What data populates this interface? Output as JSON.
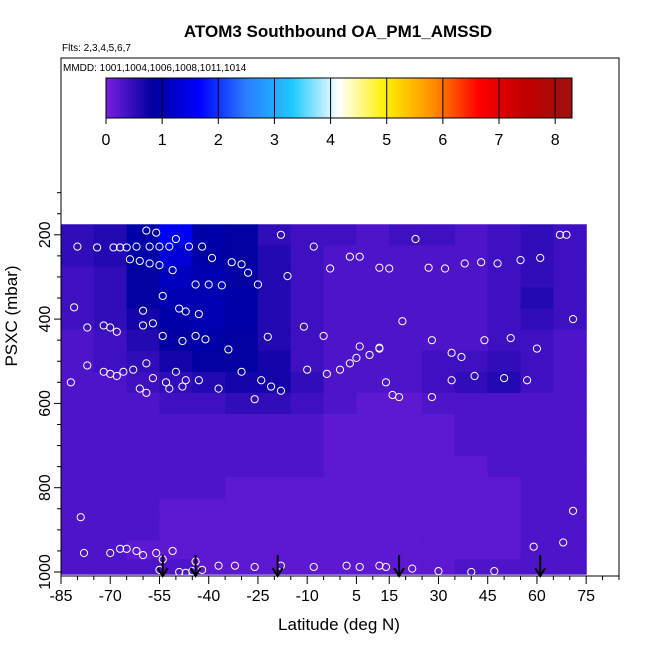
{
  "chart_data": {
    "type": "heatmap",
    "title": "ATOM3 Southbound OA_PM1_AMSSD",
    "subtitle_flights": "Flts: 2,3,4,5,6,7",
    "subtitle_dates": "MMDD: 1001,1004,1006,1008,1011,1014",
    "xlabel": "Latitude (deg N)",
    "ylabel": "PSXC (mbar)",
    "xlim": [
      -85,
      85
    ],
    "ylim": [
      1000,
      100
    ],
    "y_inverted": true,
    "x_ticks": [
      -85,
      -70,
      -55,
      -40,
      -25,
      -10,
      5,
      15,
      30,
      45,
      60,
      75
    ],
    "y_ticks": [
      200,
      400,
      600,
      800,
      1000
    ],
    "colorbar": {
      "range": [
        0,
        8.3
      ],
      "ticks": [
        0,
        1,
        2,
        3,
        4,
        5,
        6,
        7,
        8
      ],
      "stops": [
        "#7a1fe0",
        "#0000a0",
        "#0000ff",
        "#2a7dff",
        "#1ec8ff",
        "#ffffff",
        "#fff000",
        "#ff9000",
        "#ff0000",
        "#c00000",
        "#a01010"
      ]
    },
    "pressure_levels": [
      200,
      250,
      300,
      350,
      400,
      450,
      500,
      550,
      600,
      650,
      700,
      750,
      800,
      850,
      900,
      950,
      990
    ],
    "latitude_bins": [
      -80,
      -70,
      -60,
      -50,
      -40,
      -30,
      -20,
      -10,
      0,
      10,
      20,
      30,
      40,
      50,
      60,
      70
    ],
    "values": [
      [
        0.5,
        0.6,
        0.9,
        1.6,
        0.9,
        0.8,
        0.5,
        0.4,
        0.4,
        0.3,
        0.4,
        0.4,
        0.3,
        0.4,
        0.5,
        0.4
      ],
      [
        0.5,
        0.6,
        0.9,
        1.3,
        0.9,
        0.8,
        0.6,
        0.4,
        0.3,
        0.3,
        0.3,
        0.3,
        0.3,
        0.4,
        0.5,
        0.4
      ],
      [
        0.4,
        0.5,
        0.8,
        1.1,
        1.0,
        0.8,
        0.6,
        0.4,
        0.3,
        0.3,
        0.3,
        0.3,
        0.3,
        0.4,
        0.5,
        0.4
      ],
      [
        0.4,
        0.5,
        0.8,
        1.0,
        1.0,
        0.9,
        0.6,
        0.4,
        0.3,
        0.3,
        0.3,
        0.3,
        0.3,
        0.4,
        0.6,
        0.4
      ],
      [
        0.4,
        0.5,
        0.7,
        0.9,
        1.0,
        0.9,
        0.6,
        0.4,
        0.3,
        0.3,
        0.3,
        0.3,
        0.3,
        0.4,
        0.5,
        0.4
      ],
      [
        0.3,
        0.4,
        0.6,
        0.8,
        0.9,
        0.8,
        0.6,
        0.4,
        0.3,
        0.3,
        0.3,
        0.3,
        0.3,
        0.4,
        0.4,
        0.3
      ],
      [
        0.3,
        0.4,
        0.5,
        0.7,
        0.8,
        0.8,
        0.7,
        0.4,
        0.3,
        0.3,
        0.3,
        0.4,
        0.4,
        0.5,
        0.4,
        0.3
      ],
      [
        0.3,
        0.3,
        0.4,
        0.5,
        0.6,
        0.7,
        0.7,
        0.5,
        0.3,
        0.3,
        0.3,
        0.4,
        0.5,
        0.6,
        0.4,
        0.3
      ],
      [
        0.3,
        0.3,
        0.3,
        0.4,
        0.4,
        0.5,
        0.5,
        0.4,
        0.3,
        0.2,
        0.2,
        0.3,
        0.3,
        0.3,
        0.3,
        0.3
      ],
      [
        0.3,
        0.3,
        0.3,
        0.3,
        0.3,
        0.3,
        0.3,
        0.3,
        0.2,
        0.2,
        0.2,
        0.2,
        0.3,
        0.3,
        0.3,
        0.3
      ],
      [
        0.3,
        0.3,
        0.3,
        0.3,
        0.3,
        0.3,
        0.3,
        0.3,
        0.2,
        0.2,
        0.2,
        0.2,
        0.3,
        0.3,
        0.3,
        0.3
      ],
      [
        0.3,
        0.3,
        0.3,
        0.3,
        0.3,
        0.3,
        0.3,
        0.3,
        0.2,
        0.2,
        0.2,
        0.2,
        0.2,
        0.3,
        0.3,
        0.3
      ],
      [
        0.3,
        0.3,
        0.3,
        0.3,
        0.3,
        0.2,
        0.2,
        0.2,
        0.2,
        0.2,
        0.2,
        0.2,
        0.2,
        0.2,
        0.3,
        0.3
      ],
      [
        0.3,
        0.3,
        0.3,
        0.2,
        0.2,
        0.2,
        0.2,
        0.2,
        0.2,
        0.2,
        0.2,
        0.2,
        0.2,
        0.2,
        0.3,
        0.3
      ],
      [
        0.3,
        0.3,
        0.3,
        0.2,
        0.2,
        0.2,
        0.2,
        0.2,
        0.2,
        0.2,
        0.2,
        0.2,
        0.2,
        0.2,
        0.3,
        0.3
      ],
      [
        0.3,
        0.3,
        0.2,
        0.2,
        0.2,
        0.2,
        0.2,
        0.2,
        0.2,
        0.2,
        0.2,
        0.2,
        0.2,
        0.2,
        0.3,
        0.3
      ],
      [
        0.3,
        0.3,
        0.3,
        0.3,
        0.2,
        0.2,
        0.2,
        0.2,
        0.2,
        0.2,
        0.2,
        0.2,
        0.3,
        0.3,
        0.3,
        0.3
      ]
    ],
    "sample_points": [
      [
        -80,
        228
      ],
      [
        -74,
        230
      ],
      [
        -69,
        230
      ],
      [
        -67,
        230
      ],
      [
        -65,
        230
      ],
      [
        -62,
        228
      ],
      [
        -58,
        228
      ],
      [
        -55,
        228
      ],
      [
        -56,
        195
      ],
      [
        -59,
        190
      ],
      [
        -52,
        228
      ],
      [
        -50,
        210
      ],
      [
        -46,
        228
      ],
      [
        -42,
        228
      ],
      [
        -39,
        255
      ],
      [
        -33,
        265
      ],
      [
        -30,
        270
      ],
      [
        -28,
        290
      ],
      [
        -25,
        318
      ],
      [
        -18,
        200
      ],
      [
        -16,
        298
      ],
      [
        -8,
        228
      ],
      [
        -3,
        280
      ],
      [
        3,
        252
      ],
      [
        6,
        252
      ],
      [
        12,
        278
      ],
      [
        15,
        280
      ],
      [
        23,
        210
      ],
      [
        27,
        278
      ],
      [
        32,
        280
      ],
      [
        38,
        268
      ],
      [
        43,
        265
      ],
      [
        48,
        268
      ],
      [
        55,
        260
      ],
      [
        61,
        255
      ],
      [
        67,
        200
      ],
      [
        69,
        200
      ],
      [
        71,
        400
      ],
      [
        -64,
        258
      ],
      [
        -61,
        262
      ],
      [
        -58,
        268
      ],
      [
        -55,
        272
      ],
      [
        -51,
        284
      ],
      [
        -44,
        318
      ],
      [
        -40,
        318
      ],
      [
        -81,
        372
      ],
      [
        -60,
        380
      ],
      [
        -54,
        345
      ],
      [
        -49,
        375
      ],
      [
        -47,
        382
      ],
      [
        -43,
        388
      ],
      [
        -36,
        320
      ],
      [
        -77,
        420
      ],
      [
        -72,
        415
      ],
      [
        -70,
        420
      ],
      [
        -68,
        430
      ],
      [
        -60,
        415
      ],
      [
        -57,
        410
      ],
      [
        -54,
        440
      ],
      [
        -48,
        452
      ],
      [
        -44,
        440
      ],
      [
        -41,
        448
      ],
      [
        -34,
        472
      ],
      [
        -22,
        442
      ],
      [
        -11,
        418
      ],
      [
        -5,
        440
      ],
      [
        6,
        465
      ],
      [
        12,
        470
      ],
      [
        19,
        405
      ],
      [
        28,
        450
      ],
      [
        34,
        480
      ],
      [
        37,
        490
      ],
      [
        44,
        450
      ],
      [
        52,
        445
      ],
      [
        60,
        470
      ],
      [
        -77,
        510
      ],
      [
        -72,
        525
      ],
      [
        -70,
        530
      ],
      [
        -68,
        535
      ],
      [
        -66,
        525
      ],
      [
        -63,
        520
      ],
      [
        -59,
        505
      ],
      [
        -57,
        540
      ],
      [
        -53,
        550
      ],
      [
        -50,
        525
      ],
      [
        -47,
        545
      ],
      [
        -43,
        545
      ],
      [
        -37,
        565
      ],
      [
        -30,
        525
      ],
      [
        -24,
        545
      ],
      [
        -21,
        560
      ],
      [
        -18,
        570
      ],
      [
        -26,
        590
      ],
      [
        -10,
        520
      ],
      [
        -4,
        530
      ],
      [
        0,
        520
      ],
      [
        3,
        505
      ],
      [
        5,
        492
      ],
      [
        9,
        485
      ],
      [
        12,
        468
      ],
      [
        14,
        550
      ],
      [
        16,
        580
      ],
      [
        18,
        585
      ],
      [
        28,
        585
      ],
      [
        34,
        545
      ],
      [
        41,
        535
      ],
      [
        50,
        540
      ],
      [
        57,
        545
      ],
      [
        -82,
        550
      ],
      [
        -61,
        565
      ],
      [
        -59,
        575
      ],
      [
        -52,
        565
      ],
      [
        -48,
        560
      ],
      [
        71,
        855
      ],
      [
        -79,
        870
      ],
      [
        -78,
        955
      ],
      [
        -70,
        955
      ],
      [
        -67,
        945
      ],
      [
        -65,
        945
      ],
      [
        -62,
        950
      ],
      [
        -60,
        960
      ],
      [
        -56,
        955
      ],
      [
        -54,
        970
      ],
      [
        -51,
        950
      ],
      [
        -44,
        975
      ],
      [
        -37,
        985
      ],
      [
        -32,
        985
      ],
      [
        -26,
        988
      ],
      [
        -18,
        985
      ],
      [
        -8,
        988
      ],
      [
        2,
        985
      ],
      [
        6,
        988
      ],
      [
        12,
        985
      ],
      [
        14,
        988
      ],
      [
        22,
        992
      ],
      [
        30,
        998
      ],
      [
        40,
        1000
      ],
      [
        47,
        998
      ],
      [
        59,
        940
      ],
      [
        68,
        930
      ],
      [
        -55,
        995
      ],
      [
        -49,
        1000
      ],
      [
        -47,
        1002
      ],
      [
        -45,
        998
      ],
      [
        -42,
        995
      ]
    ],
    "flight_arrows_lat": [
      -54,
      -44,
      -19,
      18,
      61
    ]
  }
}
